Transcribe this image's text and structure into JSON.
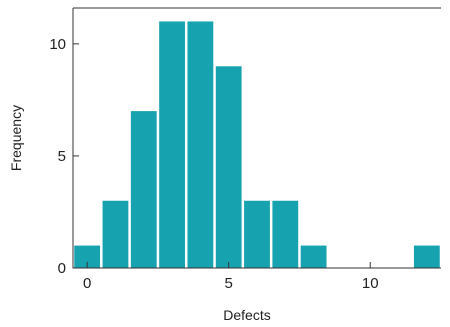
{
  "chart_data": {
    "type": "bar",
    "title": "",
    "xlabel": "Defects",
    "ylabel": "Frequency",
    "categories": [
      0,
      1,
      2,
      3,
      4,
      5,
      6,
      7,
      8,
      9,
      10,
      11,
      12
    ],
    "values": [
      1,
      3,
      7,
      11,
      11,
      9,
      3,
      3,
      1,
      0,
      0,
      0,
      1
    ],
    "xlim": [
      -0.5,
      12.5
    ],
    "ylim": [
      0,
      11.6
    ],
    "xticks": [
      0,
      5,
      10
    ],
    "yticks": [
      0,
      5,
      10
    ],
    "bar_color": "#17a2b0",
    "grid": false,
    "legend": "none"
  }
}
